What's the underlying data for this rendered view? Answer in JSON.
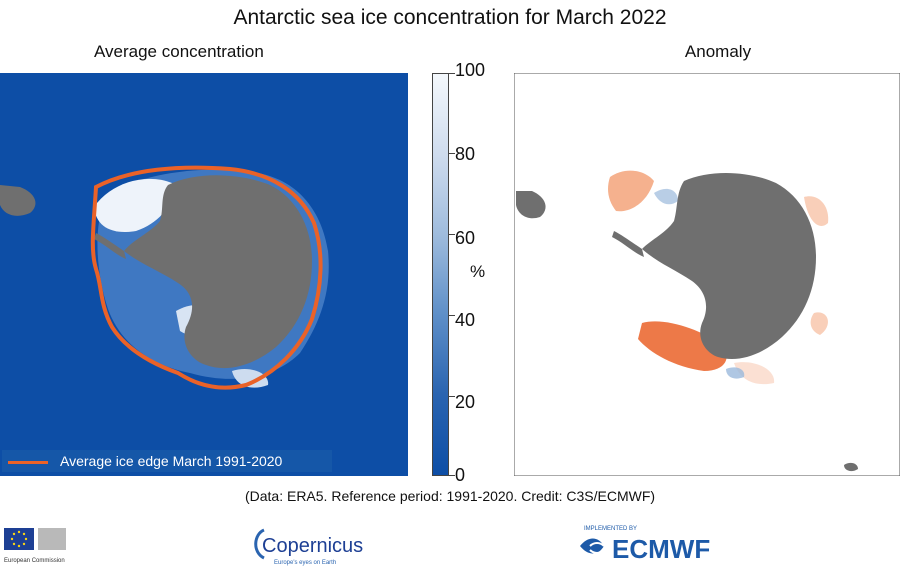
{
  "title": "Antarctic sea ice concentration for March 2022",
  "panels": {
    "left_title": "Average concentration",
    "right_title": "Anomaly"
  },
  "colorbar": {
    "ticks": [
      "100",
      "80",
      "60",
      "40",
      "20",
      "0"
    ],
    "unit": "%",
    "gradient_colors": [
      "#f4f8fc",
      "#9fbcdd",
      "#2a64b0",
      "#0d4ea6"
    ]
  },
  "legend": {
    "label": "Average ice edge March 1991-2020",
    "line_color": "#ea6228"
  },
  "colors": {
    "ocean": "#0d4ea6",
    "land": "#6f6f6f",
    "ice": "#eef3fa",
    "anomaly_negative": "#ea6228",
    "anomaly_positive": "#9bb9dc"
  },
  "credit": "(Data: ERA5.  Reference period: 1991-2020.  Credit: C3S/ECMWF)",
  "logos": {
    "eu": {
      "name": "European Commission",
      "text": "European Commission"
    },
    "copernicus": {
      "name": "Copernicus",
      "tagline": "Europe's eyes on Earth"
    },
    "ecmwf": {
      "name": "ECMWF",
      "tagline": "IMPLEMENTED BY"
    }
  }
}
